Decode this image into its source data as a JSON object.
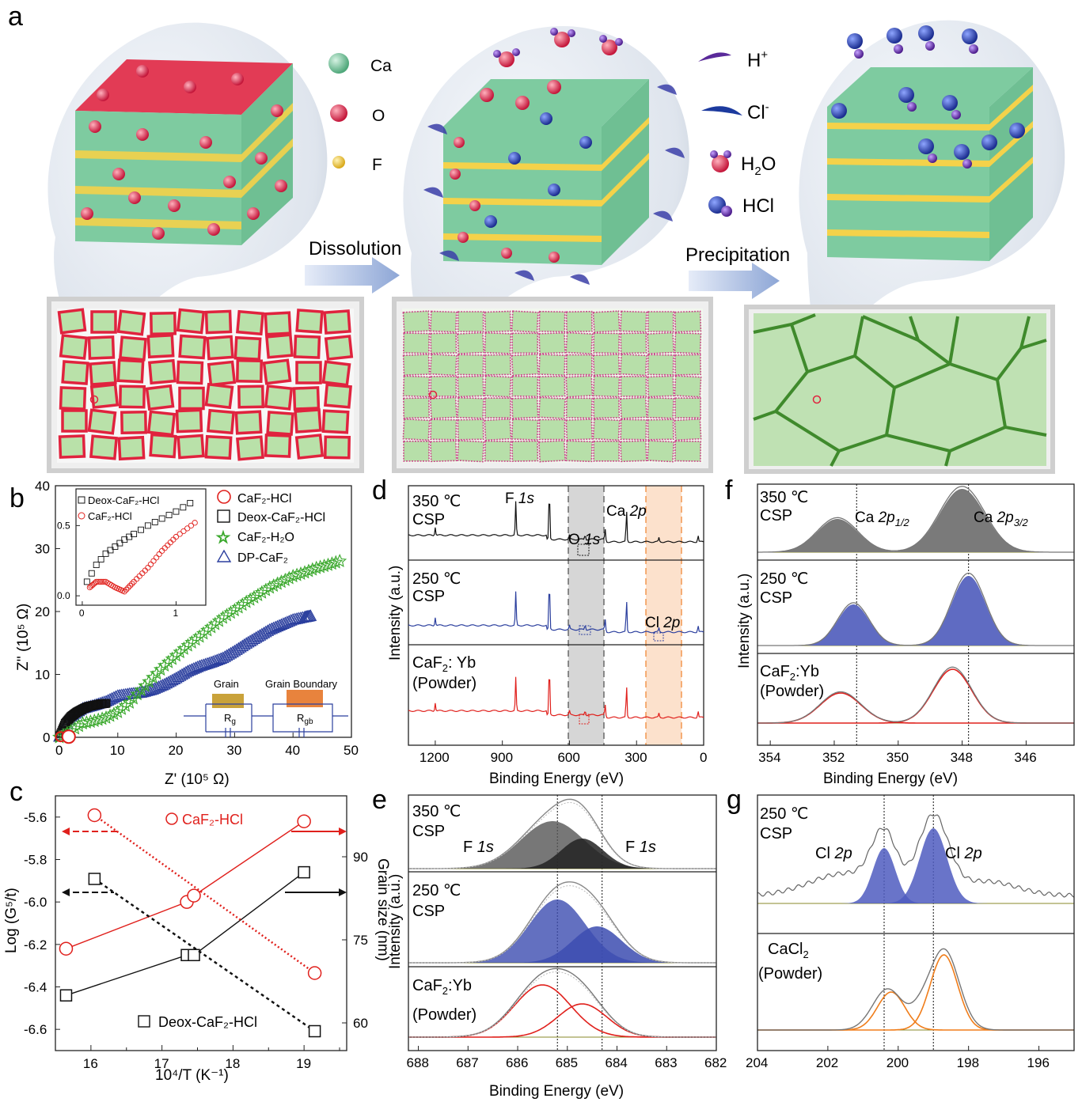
{
  "panel_letters": {
    "a": "a",
    "b": "b",
    "c": "c",
    "d": "d",
    "e": "e",
    "f": "f",
    "g": "g"
  },
  "schematic": {
    "legend_atoms": [
      {
        "label": "Ca",
        "color": "#7ecba0"
      },
      {
        "label": "O",
        "color": "#e23b55"
      },
      {
        "label": "F",
        "color": "#f4d24a"
      }
    ],
    "legend_species": [
      {
        "label": "H",
        "sup": "+"
      },
      {
        "label": "Cl",
        "sup": "-"
      },
      {
        "label": "H",
        "sub": "2",
        "suffix": "O"
      },
      {
        "label": "HCl"
      }
    ],
    "arrow_labels": [
      "Dissolution",
      "Precipitation"
    ]
  },
  "chart_data": [
    {
      "panel": "b",
      "type": "scatter",
      "xlabel": "Z'  (10⁵ Ω)",
      "ylabel": "Z''  (10⁵ Ω)",
      "xlim": [
        0,
        50
      ],
      "ylim": [
        0,
        40
      ],
      "xticks": [
        "0",
        "10",
        "20",
        "30",
        "40",
        "50"
      ],
      "yticks": [
        "0",
        "10",
        "20",
        "30",
        "40"
      ],
      "legend": [
        "CaF₂-HCl",
        "Deox-CaF₂-HCl",
        "CaF₂-H₂O",
        "DP-CaF₂"
      ],
      "series": [
        {
          "name": "CaF2-H2O",
          "x": [
            0,
            2,
            4,
            6,
            8,
            10,
            12,
            14,
            16,
            18,
            20,
            22,
            24,
            26,
            28,
            30,
            32,
            34,
            36,
            38,
            40,
            42,
            44,
            46,
            48
          ],
          "y": [
            0,
            1,
            2.2,
            2.6,
            3.1,
            4,
            5.5,
            7.5,
            9.5,
            11.4,
            13,
            14.6,
            16,
            17.5,
            19,
            20.2,
            21.5,
            22.6,
            23.8,
            24.7,
            25.6,
            26.2,
            26.9,
            27.4,
            28
          ]
        },
        {
          "name": "DP-CaF2",
          "x": [
            0,
            2,
            4,
            6,
            8,
            10,
            12,
            14,
            16,
            18,
            20,
            22,
            24,
            26,
            28,
            30,
            32,
            34,
            36,
            38,
            40,
            42,
            43
          ],
          "y": [
            0,
            3.2,
            4.5,
            5,
            5.6,
            6.5,
            6.8,
            7,
            7.5,
            8.3,
            9.3,
            10.4,
            11.2,
            11.8,
            12.5,
            13.6,
            14.8,
            15.9,
            17,
            17.8,
            18.6,
            19,
            19.2
          ]
        },
        {
          "name": "Deox-CaF2-HCl",
          "x": [
            0,
            1,
            2,
            3,
            4,
            5,
            6,
            7,
            8
          ],
          "y": [
            0,
            2.2,
            3.3,
            4,
            4.5,
            4.9,
            5.1,
            5.3,
            5.4
          ]
        },
        {
          "name": "CaF2-HCl",
          "x": [
            0.2,
            0.5,
            1
          ],
          "y": [
            0,
            0.1,
            0.2
          ]
        }
      ],
      "inset": {
        "legend": [
          "Deox-CaF₂-HCl",
          "CaF₂-HCl"
        ],
        "xticks": [
          "0",
          "1"
        ],
        "yticks": [
          "0.0",
          "0.5"
        ],
        "series": [
          {
            "name": "Deox-CaF2-HCl",
            "x": [
              0.05,
              0.15,
              0.25,
              0.35,
              0.45,
              0.55,
              0.7,
              0.85,
              1.0,
              1.15
            ],
            "y": [
              0.1,
              0.22,
              0.3,
              0.35,
              0.4,
              0.44,
              0.5,
              0.55,
              0.6,
              0.66
            ]
          },
          {
            "name": "CaF2-HCl",
            "x": [
              0.08,
              0.15,
              0.25,
              0.35,
              0.45,
              0.55,
              0.7,
              0.85,
              1.0,
              1.2
            ],
            "y": [
              0.06,
              0.1,
              0.1,
              0.06,
              0.03,
              0.1,
              0.2,
              0.32,
              0.42,
              0.52
            ]
          }
        ]
      },
      "circuit_labels": {
        "grain": "Grain",
        "boundary": "Grain Boundary",
        "rg": "R",
        "rg_sub": "g",
        "rgb": "R",
        "rgb_sub": "gb"
      }
    },
    {
      "panel": "c",
      "type": "line",
      "xlabel": "10⁴/T (K⁻¹)",
      "ylabel": "Log (G⁵/t)",
      "y2label": "Grain size (nm)",
      "xlim": [
        15.5,
        19.6
      ],
      "ylim": [
        -6.7,
        -5.5
      ],
      "y2lim": [
        55,
        101
      ],
      "xticks": [
        "16",
        "17",
        "18",
        "19"
      ],
      "yticks": [
        "-5.6",
        "-5.8",
        "-6.0",
        "-6.2",
        "-6.4",
        "-6.6"
      ],
      "y2ticks": [
        "60",
        "75",
        "90"
      ],
      "series": [
        {
          "name": "CaF₂-HCl",
          "axis": "left",
          "x": [
            15.65,
            17.35,
            17.45,
            19.0
          ],
          "y": [
            -6.22,
            -6.0,
            -5.97,
            -5.62
          ]
        },
        {
          "name": "Deox-CaF2-HCl",
          "axis": "left",
          "x": [
            15.65,
            17.35,
            17.45,
            19.0
          ],
          "y": [
            -6.44,
            -6.25,
            -6.25,
            -5.86
          ]
        },
        {
          "name": "CaF2-HCl grain size",
          "axis": "right",
          "x": [
            16.05,
            19.15
          ],
          "y": [
            97.5,
            69
          ]
        },
        {
          "name": "Deox-CaF₂-HCl",
          "axis": "right",
          "x": [
            16.05,
            19.15
          ],
          "y": [
            86,
            58.5
          ]
        }
      ]
    },
    {
      "panel": "d",
      "type": "line",
      "xlabel": "Binding Energy (eV)",
      "ylabel": "Intensity (a.u.)",
      "xlim": [
        1320,
        0
      ],
      "xticks": [
        "1200",
        "900",
        "600",
        "300",
        "0"
      ],
      "traces": [
        {
          "name": "350 ℃ CSP",
          "color": "#111111"
        },
        {
          "name": "250 ℃ CSP",
          "color": "#2b3f9e"
        },
        {
          "name": "CaF₂: Yb (Powder)",
          "color": "#e0201c"
        }
      ],
      "peak_labels": [
        "F 1s",
        "O 1s",
        "Ca 2p",
        "Cl 2p"
      ]
    },
    {
      "panel": "e",
      "type": "area",
      "xlabel": "Binding Energy (eV)",
      "ylabel": "Intensity (a.u.)",
      "xlim": [
        688.2,
        682
      ],
      "xticks": [
        "688",
        "687",
        "686",
        "685",
        "684",
        "683",
        "682"
      ],
      "vlines": [
        685.2,
        684.3
      ],
      "traces": [
        {
          "name": "350 ℃ CSP",
          "peaks": [
            685.3,
            684.7
          ]
        },
        {
          "name": "250 ℃ CSP",
          "peaks": [
            685.2,
            684.4
          ]
        },
        {
          "name": "CaF₂:Yb (Powder)",
          "peaks": [
            685.5,
            684.7
          ]
        }
      ],
      "peak_labels": [
        "F 1s",
        "F 1s"
      ]
    },
    {
      "panel": "f",
      "type": "area",
      "xlabel": "Binding Energy (eV)",
      "ylabel": "Intensity (a.u.)",
      "xlim": [
        354.4,
        344.5
      ],
      "xticks": [
        "354",
        "352",
        "350",
        "348",
        "346"
      ],
      "vlines": [
        351.3,
        347.8
      ],
      "traces": [
        {
          "name": "350 ℃ CSP",
          "peaks": [
            351.9,
            348.0
          ]
        },
        {
          "name": "250 ℃ CSP",
          "peaks": [
            351.4,
            347.8
          ]
        },
        {
          "name": "CaF₂:Yb (Powder)",
          "peaks": [
            351.8,
            348.3
          ]
        }
      ],
      "peak_labels": [
        "Ca 2p1/2",
        "Ca 2p3/2"
      ]
    },
    {
      "panel": "g",
      "type": "area",
      "xlabel": "Binding Energy (eV)",
      "ylabel": "Intensity (a.u.)",
      "xlim": [
        204,
        195
      ],
      "xticks": [
        "204",
        "202",
        "200",
        "198",
        "196"
      ],
      "vlines": [
        200.4,
        199.0
      ],
      "traces": [
        {
          "name": "250 ℃ CSP",
          "peaks": [
            200.4,
            199.0
          ]
        },
        {
          "name": "CaCl₂ (Powder)",
          "peaks": [
            200.2,
            198.7
          ]
        }
      ],
      "peak_labels": [
        "Cl 2p",
        "Cl 2p"
      ]
    }
  ]
}
